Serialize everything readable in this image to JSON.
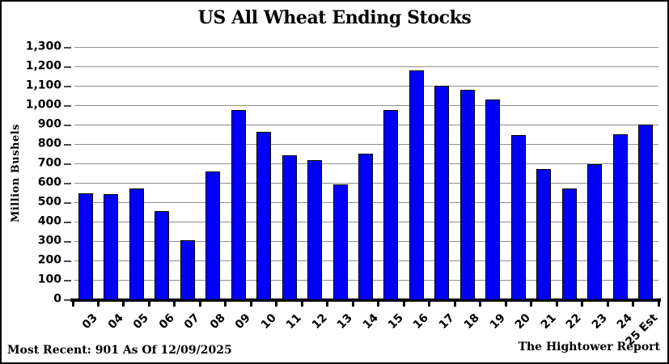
{
  "title": "US All Wheat Ending Stocks",
  "chart_data": {
    "type": "bar",
    "title": "US All Wheat Ending Stocks",
    "xlabel": "",
    "ylabel": "Million Bushels",
    "ylim": [
      0,
      1300
    ],
    "ytick_step": 100,
    "grid": true,
    "legend": "none",
    "categories": [
      "03",
      "04",
      "05",
      "06",
      "07",
      "08",
      "09",
      "10",
      "11",
      "12",
      "13",
      "14",
      "15",
      "16",
      "17",
      "18",
      "19",
      "20",
      "21",
      "22",
      "23",
      "24",
      "25 Est"
    ],
    "values": [
      546,
      540,
      571,
      456,
      306,
      657,
      976,
      862,
      743,
      718,
      590,
      752,
      976,
      1181,
      1099,
      1080,
      1028,
      845,
      670,
      570,
      695,
      851,
      901
    ],
    "bar_color": "#0000fa",
    "bar_border_color": "#000000",
    "gridline_color": "#8f8f8f"
  },
  "footer": {
    "most_recent": "Most Recent: 901 As Of 12/09/2025",
    "source": "The Hightower Report"
  }
}
